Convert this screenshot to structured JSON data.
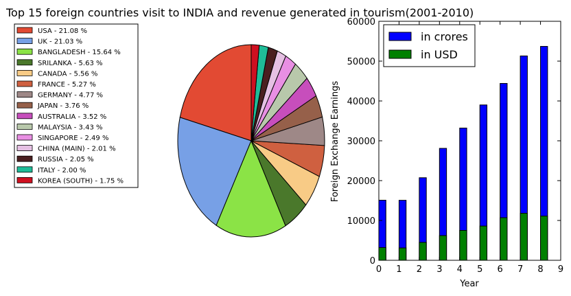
{
  "title": "Top 15 foreign countries visit to INDIA and revenue generated in tourism(2001-2010)",
  "chart_data": [
    {
      "type": "pie",
      "legend_position": "left",
      "slices": [
        {
          "label": "USA - 21.08 %",
          "value": 21.08,
          "color": "#e24a33"
        },
        {
          "label": "UK  - 21.03 %",
          "value": 21.03,
          "color": "#77a0e6"
        },
        {
          "label": "BANGLADESH - 15.64 %",
          "value": 15.64,
          "color": "#8be346"
        },
        {
          "label": " SRILANKA   - 5.63 %",
          "value": 5.63,
          "color": "#4a782b"
        },
        {
          "label": "CANADA  - 5.56 %",
          "value": 5.56,
          "color": "#f8cb86"
        },
        {
          "label": "FRANCE  - 5.27 %",
          "value": 5.27,
          "color": "#cf6040"
        },
        {
          "label": "GERMANY - 4.77 %",
          "value": 4.77,
          "color": "#9e8887"
        },
        {
          "label": "JAPAN - 3.76 %",
          "value": 3.76,
          "color": "#96604a"
        },
        {
          "label": "AUSTRALIA - 3.52 %",
          "value": 3.52,
          "color": "#c74ebc"
        },
        {
          "label": "MALAYSIA - 3.43 %",
          "value": 3.43,
          "color": "#b8c8ab"
        },
        {
          "label": "SINGAPORE - 2.49 %",
          "value": 2.49,
          "color": "#e88fe3"
        },
        {
          "label": "CHINA (MAIN) - 2.01 %",
          "value": 2.01,
          "color": "#e5c0e3"
        },
        {
          "label": "RUSSIA - 2.05 %",
          "value": 2.05,
          "color": "#4a1f20"
        },
        {
          "label": "ITALY - 2.00 %",
          "value": 2.0,
          "color": "#1fbc98"
        },
        {
          "label": "KOREA (SOUTH) - 1.75 %",
          "value": 1.75,
          "color": "#cf1020"
        }
      ]
    },
    {
      "type": "bar",
      "xlabel": "Year",
      "ylabel": "Foreign Exchange Earnings",
      "xlim": [
        0,
        9
      ],
      "ylim": [
        0,
        60000
      ],
      "xticks": [
        "0",
        "1",
        "2",
        "3",
        "4",
        "5",
        "6",
        "7",
        "8",
        "9"
      ],
      "yticks": [
        "0",
        "10000",
        "20000",
        "30000",
        "40000",
        "50000",
        "60000"
      ],
      "legend_position": "top-left",
      "x": [
        0,
        1,
        2,
        3,
        4,
        5,
        6,
        7,
        8
      ],
      "series": [
        {
          "name": "in crores",
          "color": "#0000ff",
          "values": [
            15083,
            15064,
            20729,
            28100,
            33200,
            39000,
            44400,
            51300,
            53700
          ]
        },
        {
          "name": "in USD",
          "color": "#008000",
          "values": [
            3200,
            3100,
            4500,
            6200,
            7500,
            8600,
            10700,
            11800,
            11100
          ]
        }
      ]
    }
  ]
}
